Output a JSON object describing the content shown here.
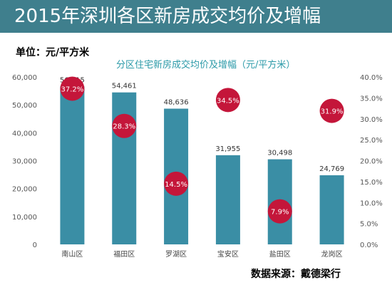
{
  "header": {
    "title": "2015年深圳各区新房成交均价及增幅"
  },
  "unit_label": "单位：元/平方米",
  "source": "数据来源：戴德梁行",
  "colors": {
    "header_bg": "#3f7f8d",
    "bar": "#3a8ea5",
    "bubble": "#c4163a",
    "title_text": "#2b9aa8"
  },
  "chart_data": {
    "type": "bar",
    "title": "分区住宅新房成交均价及增幅（元/平方米）",
    "categories": [
      "南山区",
      "福田区",
      "罗湖区",
      "宝安区",
      "盐田区",
      "龙岗区"
    ],
    "series": [
      {
        "axis": "left",
        "values": [
          56615,
          54461,
          48636,
          31955,
          30498,
          24769
        ]
      },
      {
        "axis": "right",
        "values": [
          37.2,
          28.3,
          14.5,
          34.5,
          7.9,
          31.9
        ]
      }
    ],
    "value_labels": [
      "56,615",
      "54,461",
      "48,636",
      "31,955",
      "30,498",
      "24,769"
    ],
    "growth_labels": [
      "37.2%",
      "28.3%",
      "14.5%",
      "34.5%",
      "7.9%",
      "31.9%"
    ],
    "y_left": {
      "range": [
        0,
        60000
      ],
      "ticks": [
        0,
        10000,
        20000,
        30000,
        40000,
        50000,
        60000
      ],
      "tick_labels": [
        "0",
        "10,000",
        "20,000",
        "30,000",
        "40,000",
        "50,000",
        "60,000"
      ]
    },
    "y_right": {
      "range": [
        0,
        40
      ],
      "ticks": [
        0,
        5,
        10,
        15,
        20,
        25,
        30,
        35,
        40
      ],
      "tick_labels": [
        "0.0%",
        "5.0%",
        "10.0%",
        "15.0%",
        "20.0%",
        "25.0%",
        "30.0%",
        "35.0%",
        "40.0%"
      ]
    },
    "grid": false,
    "legend": "none"
  }
}
